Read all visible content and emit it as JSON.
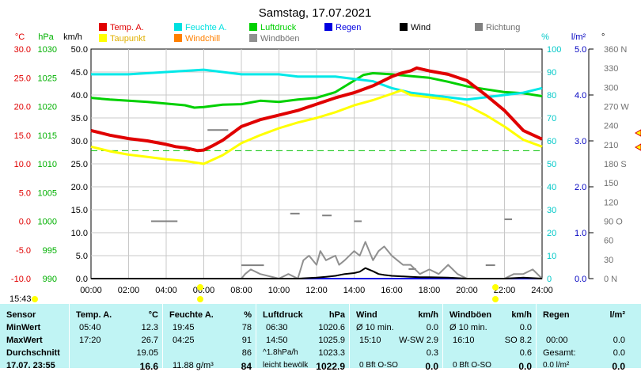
{
  "title": "Samstag, 17.07.2021",
  "current_time": "15:43",
  "legend": [
    {
      "label": "Temp. A.",
      "color": "#e00000"
    },
    {
      "label": "Feuchte A.",
      "color": "#00e0e0"
    },
    {
      "label": "Luftdruck",
      "color": "#00d000"
    },
    {
      "label": "Regen",
      "color": "#0000e0"
    },
    {
      "label": "Wind",
      "color": "#000000"
    },
    {
      "label": "Richtung",
      "color": "#808080"
    },
    {
      "label": "Taupunkt",
      "color": "#ffff00"
    },
    {
      "label": "Windchill",
      "color": "#ff8000"
    },
    {
      "label": "Windböen",
      "color": "#909090"
    }
  ],
  "axes": {
    "temp": {
      "unit": "°C",
      "color": "#e00000",
      "ticks": [
        "30.0",
        "25.0",
        "20.0",
        "15.0",
        "10.0",
        "5.0",
        "0.0",
        "-5.0",
        "-10.0"
      ]
    },
    "pressure": {
      "unit": "hPa",
      "color": "#00b000",
      "ticks": [
        "1030",
        "1025",
        "1020",
        "1015",
        "1010",
        "1005",
        "1000",
        "995",
        "990"
      ]
    },
    "wind": {
      "unit": "km/h",
      "color": "#000000",
      "ticks": [
        "50.0",
        "45.0",
        "40.0",
        "35.0",
        "30.0",
        "25.0",
        "20.0",
        "15.0",
        "10.0",
        "5.0",
        "0.0"
      ]
    },
    "humidity": {
      "unit": "%",
      "color": "#00c8c8",
      "ticks": [
        "100",
        "90",
        "80",
        "70",
        "60",
        "50",
        "40",
        "30",
        "20",
        "10",
        "0"
      ]
    },
    "rain": {
      "unit": "l/m²",
      "color": "#0000c0",
      "ticks": [
        "5.0",
        "4.0",
        "3.0",
        "2.0",
        "1.0",
        "0.0"
      ]
    },
    "direction": {
      "unit": "°",
      "ticks": [
        "360 N",
        "330",
        "300",
        "270 W",
        "240",
        "210",
        "180 S",
        "150",
        "120",
        "90 O",
        "60",
        "30",
        "0 N"
      ]
    },
    "time_ticks": [
      "00:00",
      "02:00",
      "04:00",
      "06:00",
      "08:00",
      "10:00",
      "12:00",
      "14:00",
      "16:00",
      "18:00",
      "20:00",
      "22:00",
      "24:00"
    ]
  },
  "chart_data": {
    "type": "line",
    "title": "Samstag, 17.07.2021",
    "x_unit": "h",
    "series": [
      {
        "name": "Temp. A.",
        "unit": "°C",
        "x": [
          0,
          1,
          2,
          3,
          4,
          4.5,
          5,
          5.67,
          6,
          6.5,
          7,
          7.5,
          8,
          9,
          10,
          11,
          12,
          13,
          14,
          15,
          16,
          16.5,
          17,
          17.33,
          18,
          19,
          20,
          21,
          22,
          23,
          24
        ],
        "y": [
          15.8,
          15.0,
          14.4,
          14.0,
          13.4,
          13.0,
          12.8,
          12.3,
          12.4,
          13.2,
          14.1,
          15.3,
          16.5,
          17.7,
          18.5,
          19.3,
          20.4,
          21.5,
          22.4,
          23.6,
          25.2,
          25.8,
          26.2,
          26.7,
          26.2,
          25.6,
          24.5,
          22.0,
          19.3,
          15.8,
          14.3
        ]
      },
      {
        "name": "Taupunkt",
        "unit": "°C",
        "x": [
          0,
          1,
          2,
          3,
          4,
          5,
          6,
          7,
          8,
          9,
          10,
          11,
          12,
          13,
          14,
          15,
          16,
          16.5,
          17,
          18,
          19,
          20,
          21,
          22,
          23,
          24
        ],
        "y": [
          13.0,
          12.2,
          11.6,
          11.2,
          10.8,
          10.5,
          10.0,
          11.5,
          13.6,
          15.0,
          16.2,
          17.2,
          18.0,
          19.0,
          20.2,
          21.1,
          22.2,
          22.8,
          22.0,
          21.6,
          21.2,
          20.2,
          18.5,
          16.5,
          14.2,
          13.0
        ]
      },
      {
        "name": "Feuchte A.",
        "unit": "%",
        "x": [
          0,
          2,
          4,
          6,
          7,
          8,
          9,
          10,
          11,
          12,
          13,
          14,
          15,
          16,
          17,
          18,
          19,
          20,
          21,
          22,
          23,
          24
        ],
        "y": [
          89,
          89,
          90,
          91,
          90,
          89,
          89,
          89,
          88,
          88,
          88,
          87,
          86,
          83,
          81,
          80,
          79,
          78,
          79,
          80,
          81,
          83
        ]
      },
      {
        "name": "Luftdruck",
        "unit": "hPa",
        "x": [
          0,
          1,
          2,
          3,
          4,
          5,
          5.5,
          6,
          7,
          8,
          9,
          10,
          11,
          12,
          13,
          13.5,
          14,
          14.5,
          15,
          16,
          17,
          18,
          19,
          20,
          21,
          22,
          23,
          24
        ],
        "y": [
          1021.5,
          1021.2,
          1021.0,
          1020.8,
          1020.5,
          1020.2,
          1019.8,
          1019.9,
          1020.3,
          1020.4,
          1021.0,
          1020.8,
          1021.2,
          1021.5,
          1022.5,
          1023.5,
          1024.5,
          1025.5,
          1025.8,
          1025.6,
          1025.3,
          1025.0,
          1024.3,
          1023.5,
          1023.0,
          1022.5,
          1022.3,
          1021.8
        ]
      },
      {
        "name": "Windböen",
        "unit": "km/h",
        "x": [
          0,
          8,
          8.2,
          8.5,
          9,
          10,
          10.5,
          11,
          11.3,
          11.6,
          12,
          12.2,
          12.5,
          13,
          13.2,
          13.5,
          14,
          14.3,
          14.6,
          15,
          15.3,
          15.6,
          16,
          16.3,
          16.6,
          17,
          17.5,
          18,
          18.5,
          19,
          19.5,
          20,
          21,
          22,
          22.5,
          23,
          23.5,
          24
        ],
        "y": [
          0,
          0,
          1,
          2,
          1,
          0,
          1,
          0,
          4,
          5,
          3,
          6,
          4,
          5,
          3,
          4,
          6,
          5,
          8,
          4,
          6,
          7,
          5,
          4,
          3,
          3,
          1,
          2,
          1,
          3,
          1,
          0,
          0,
          0,
          1,
          1,
          2,
          0
        ]
      },
      {
        "name": "Wind",
        "unit": "km/h",
        "x": [
          0,
          11,
          12,
          12.5,
          13,
          13.5,
          14,
          14.3,
          14.6,
          15,
          15.3,
          15.6,
          16,
          16.5,
          17,
          17.5,
          18,
          19,
          20,
          22,
          22.5,
          23,
          24
        ],
        "y": [
          0,
          0,
          0.2,
          0.4,
          0.6,
          1.0,
          1.2,
          1.5,
          2.3,
          1.6,
          1.0,
          0.8,
          0.6,
          0.5,
          0.4,
          0.3,
          0.3,
          0.2,
          0,
          0,
          0.1,
          0.2,
          0
        ]
      },
      {
        "name": "Regen",
        "unit": "l/m²",
        "x": [
          0,
          24
        ],
        "y": [
          0,
          0
        ]
      }
    ],
    "reference_lines": [
      {
        "axis": "temp",
        "value": 12.3,
        "color": "#00c000",
        "style": "dashed"
      }
    ],
    "direction_marks": [
      {
        "x": 6.2,
        "x2": 7.3,
        "deg": 233
      },
      {
        "x": 3.2,
        "x2": 4.6,
        "deg": 90
      },
      {
        "x": 8.0,
        "x2": 9.2,
        "deg": 21
      },
      {
        "x": 10.6,
        "x2": 11.1,
        "deg": 102
      },
      {
        "x": 12.3,
        "x2": 12.8,
        "deg": 99
      },
      {
        "x": 14.0,
        "x2": 14.4,
        "deg": 90
      },
      {
        "x": 16.9,
        "x2": 17.3,
        "deg": 15
      },
      {
        "x": 21.0,
        "x2": 21.5,
        "deg": 21
      },
      {
        "x": 22.0,
        "x2": 22.4,
        "deg": 93
      }
    ],
    "ylim_temp": [
      -10,
      30
    ],
    "ylim_pressure": [
      990,
      1030
    ],
    "ylim_wind": [
      0,
      50
    ],
    "ylim_humidity": [
      0,
      100
    ],
    "ylim_rain": [
      0,
      5
    ],
    "ylim_direction": [
      0,
      360
    ],
    "xlim": [
      0,
      24
    ],
    "grid": true
  },
  "stats": {
    "headers": {
      "sensor": "Sensor",
      "temp": "Temp. A.",
      "temp_unit": "°C",
      "hum": "Feuchte A.",
      "hum_unit": "%",
      "press": "Luftdruck",
      "press_unit": "hPa",
      "wind": "Wind",
      "wind_unit": "km/h",
      "gust": "Windböen",
      "gust_unit": "km/h",
      "rain": "Regen",
      "rain_unit": "l/m²"
    },
    "rows": [
      {
        "label": "MinWert",
        "temp_t": "05:40",
        "temp_v": "12.3",
        "hum_t": "19:45",
        "hum_v": "78",
        "press_t": "06:30",
        "press_v": "1020.6",
        "wind_t": "Ø 10 min.",
        "wind_v": "0.0",
        "gust_t": "Ø 10 min.",
        "gust_v": "0.0",
        "rain_t": "",
        "rain_v": ""
      },
      {
        "label": "MaxWert",
        "temp_t": "17:20",
        "temp_v": "26.7",
        "hum_t": "04:25",
        "hum_v": "91",
        "press_t": "14:50",
        "press_v": "1025.9",
        "wind_t": "15:10",
        "wind_d": "W-SW 2.9",
        "gust_t": "16:10",
        "gust_d": "SO 8.2",
        "rain_t": "00:00",
        "rain_v": "0.0"
      },
      {
        "label": "Durchschnitt",
        "temp_t": "",
        "temp_v": "19.05",
        "hum_t": "",
        "hum_v": "86",
        "press_t": "^1.8hPa/h",
        "press_v": "1023.3",
        "wind_t": "",
        "wind_v": "0.3",
        "gust_t": "",
        "gust_v": "0.6",
        "rain_t": "Gesamt:",
        "rain_v": "0.0"
      },
      {
        "label": "17.07. 23:55",
        "temp_t": "",
        "temp_v": "16.6",
        "hum_t": "11.88 g/m³",
        "hum_v": "84",
        "press_t": "leicht bewölk",
        "press_v": "1022.9",
        "wind_t": "0 Bft O-SO",
        "wind_v": "0.0",
        "gust_t": "0 Bft O-SO",
        "gust_v": "0.0",
        "rain_t": "0.0 l/m²",
        "rain_v": "0.0"
      }
    ]
  }
}
